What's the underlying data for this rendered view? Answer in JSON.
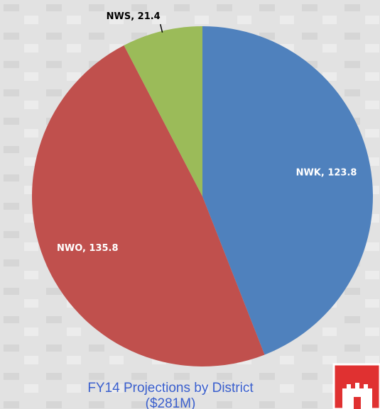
{
  "chart_data": {
    "type": "pie",
    "title": "FY14 Projections by District",
    "subtitle": "($281M)",
    "categories": [
      "NWK",
      "NWO",
      "NWS"
    ],
    "values": [
      123.8,
      135.8,
      21.4
    ],
    "value_labels": [
      "NWK, 123.8",
      "NWO, 135.8",
      "NWS, 21.4"
    ],
    "colors": [
      "#4f81bd",
      "#c0504d",
      "#9bbb59"
    ]
  }
}
